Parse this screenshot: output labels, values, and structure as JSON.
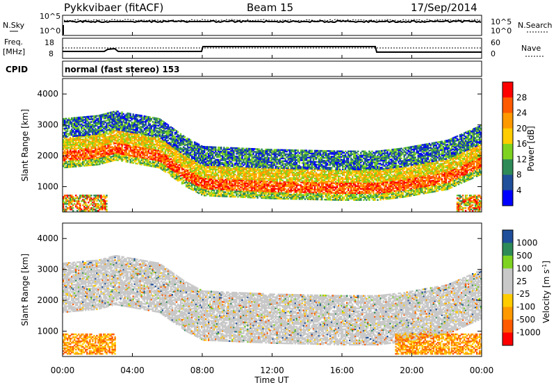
{
  "header": {
    "station": "Pykkvibaer (fitACF)",
    "beam": "Beam 15",
    "date": "17/Sep/2014"
  },
  "noise_panel": {
    "left_label": "N.Sky",
    "right_label": "N.Search",
    "left_ticks": [
      "10^5",
      "10^0"
    ],
    "right_ticks": [
      "10^5",
      "10^0"
    ]
  },
  "freq_panel": {
    "left_label_1": "Freq.",
    "left_label_2": "[MHz]",
    "right_label": "Nave",
    "left_ticks": [
      "18",
      "8"
    ],
    "right_ticks": [
      "60",
      "0"
    ]
  },
  "cpid": {
    "label": "CPID",
    "text": "normal (fast stereo) 153"
  },
  "chart_data": [
    {
      "type": "heatmap",
      "quantity": "Power",
      "ylabel": "Slant Range [km]",
      "ylim": [
        180,
        4500
      ],
      "yticks": [
        "1000",
        "2000",
        "3000",
        "4000"
      ],
      "colorbar_label": "Power [dB]",
      "colorbar_ticks": [
        "28",
        "24",
        "20",
        "16",
        "12",
        "8",
        "4"
      ],
      "colorbar_colors": [
        "#ff0000",
        "#ff5a00",
        "#ff9900",
        "#ffcc00",
        "#7ed321",
        "#2e8b57",
        "#1f4f9a",
        "#0000ff"
      ],
      "bands": [
        {
          "x": [
            0.0,
            2.0,
            3.0,
            5.5,
            7.0,
            8.0,
            12.0,
            16.0,
            18.0,
            19.5,
            22.0,
            24.0
          ],
          "y": [
            2300,
            2400,
            2550,
            2300,
            1700,
            1400,
            1300,
            1250,
            1250,
            1350,
            1600,
            2100
          ]
        }
      ]
    },
    {
      "type": "heatmap",
      "quantity": "Velocity",
      "ylabel": "Slant Range [km]",
      "ylim": [
        180,
        4500
      ],
      "yticks": [
        "1000",
        "2000",
        "3000",
        "4000"
      ],
      "colorbar_label": "Velocity [m s^-1]",
      "colorbar_ticks": [
        "1000",
        "500",
        "100",
        "25",
        "-25",
        "-100",
        "-500",
        "-1000"
      ],
      "colorbar_colors": [
        "#1f4f9a",
        "#2e8b57",
        "#7ed321",
        "#c8c8c8",
        "#c8c8c8",
        "#ffcc00",
        "#ff9900",
        "#ff5a00",
        "#ff0000"
      ]
    }
  ],
  "time_axis": {
    "label": "Time UT",
    "ticks": [
      "00:00",
      "04:00",
      "08:00",
      "12:00",
      "16:00",
      "20:00",
      "00:00"
    ]
  }
}
